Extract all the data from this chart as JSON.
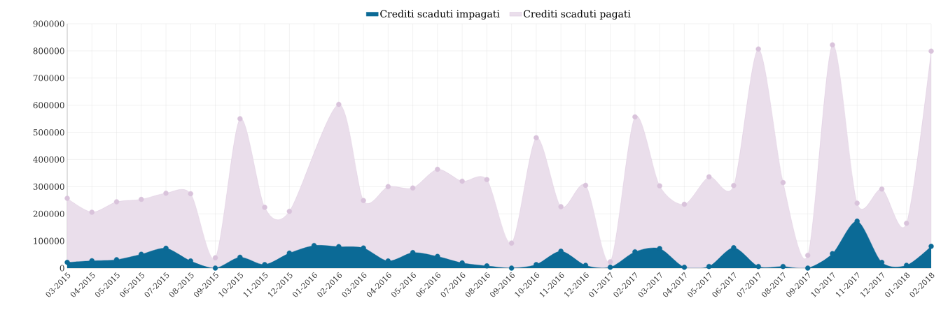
{
  "chart_data": {
    "type": "area",
    "categories": [
      "03-2015",
      "04-2015",
      "05-2015",
      "06-2015",
      "07-2015",
      "08-2015",
      "09-2015",
      "10-2015",
      "11-2015",
      "12-2015",
      "01-2016",
      "02-2016",
      "03-2016",
      "04-2016",
      "05-2016",
      "06-2016",
      "07-2016",
      "08-2016",
      "09-2016",
      "10-2016",
      "11-2016",
      "12-2016",
      "01-2017",
      "02-2017",
      "03-2017",
      "04-2017",
      "05-2017",
      "06-2017",
      "07-2017",
      "08-2017",
      "09-2017",
      "10-2017",
      "11-2017",
      "12-2017",
      "01-2018",
      "02-2018"
    ],
    "series": [
      {
        "name": "Crediti scaduti impagati",
        "color": "#0b6a96",
        "values": [
          21000,
          27000,
          31000,
          51000,
          73000,
          26000,
          0,
          40000,
          13000,
          55000,
          83000,
          79000,
          74000,
          26000,
          57000,
          43000,
          19000,
          8000,
          0,
          13000,
          62000,
          10000,
          3000,
          60000,
          72000,
          3000,
          6000,
          75000,
          6000,
          6000,
          0,
          53000,
          173000,
          21000,
          10000,
          80000
        ]
      },
      {
        "name": "Crediti scaduti pagati",
        "color": "#d9c3db",
        "values": [
          257000,
          206000,
          244000,
          253000,
          276000,
          274000,
          38000,
          550000,
          224000,
          209000,
          null,
          603000,
          249000,
          300000,
          295000,
          364000,
          320000,
          326000,
          92000,
          480000,
          226000,
          305000,
          23000,
          557000,
          303000,
          235000,
          336000,
          304000,
          807000,
          315000,
          47000,
          822000,
          239000,
          291000,
          165000,
          799000
        ]
      }
    ],
    "ylim": [
      0,
      900000
    ],
    "yticks": [
      0,
      100000,
      200000,
      300000,
      400000,
      500000,
      600000,
      700000,
      800000,
      900000
    ],
    "grid": true,
    "legend": "top",
    "marker": "circle"
  }
}
